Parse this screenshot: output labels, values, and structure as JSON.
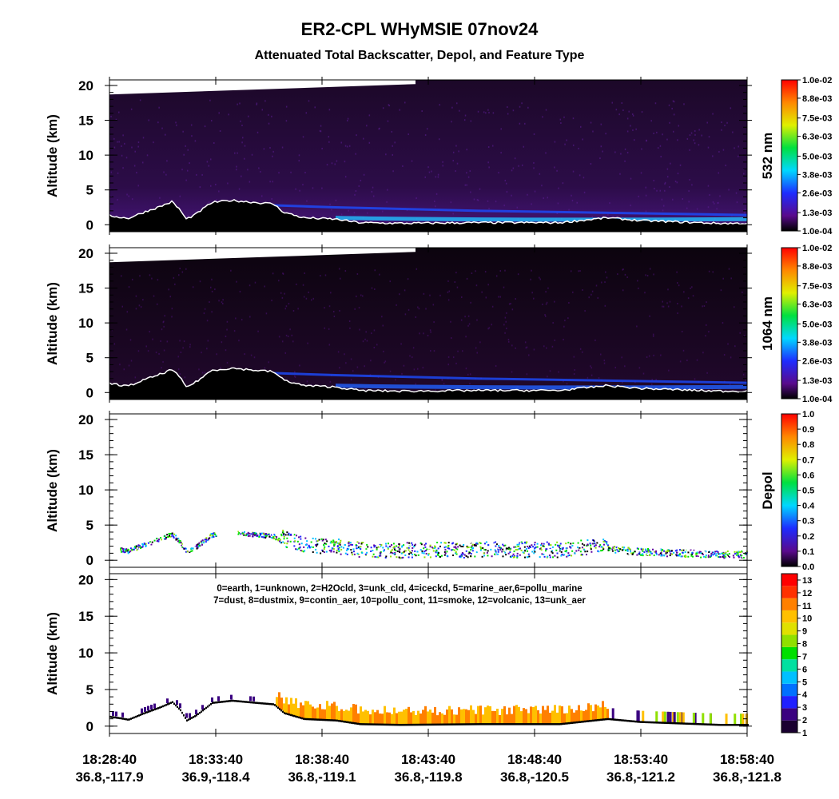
{
  "chart_data": {
    "type": "curtain",
    "title": "ER2-CPL WHyMSIE 07nov24",
    "subtitle": "Attenuated Total Backscatter, Depol, and Feature Type",
    "x_ticks": [
      {
        "time": "18:28:40",
        "location": "36.8,-117.9"
      },
      {
        "time": "18:33:40",
        "location": "36.9,-118.4"
      },
      {
        "time": "18:38:40",
        "location": "36.8,-119.1"
      },
      {
        "time": "18:43:40",
        "location": "36.8,-119.8"
      },
      {
        "time": "18:48:40",
        "location": "36.8,-120.5"
      },
      {
        "time": "18:53:40",
        "location": "36.8,-121.2"
      },
      {
        "time": "18:58:40",
        "location": "36.8,-121.8"
      }
    ],
    "panels": [
      {
        "ylabel": "Altitude (km)",
        "ylim": [
          -1,
          20.8
        ],
        "yticks": [
          0,
          5,
          10,
          15,
          20
        ],
        "colorbar": {
          "label": "532 nm",
          "lim": [
            0.0001,
            0.01
          ],
          "ticks": [
            {
              "value": 0.0001,
              "label": "1.0e-04"
            },
            {
              "value": 0.0013,
              "label": "1.3e-03"
            },
            {
              "value": 0.0026,
              "label": "2.6e-03"
            },
            {
              "value": 0.0038,
              "label": "3.8e-03"
            },
            {
              "value": 0.005,
              "label": "5.0e-03"
            },
            {
              "value": 0.0063,
              "label": "6.3e-03"
            },
            {
              "value": 0.0075,
              "label": "7.5e-03"
            },
            {
              "value": 0.0088,
              "label": "8.8e-03"
            },
            {
              "value": 0.01,
              "label": "1.0e-02"
            }
          ]
        }
      },
      {
        "ylabel": "Altitude (km)",
        "ylim": [
          -1,
          20.8
        ],
        "yticks": [
          0,
          5,
          10,
          15,
          20
        ],
        "colorbar": {
          "label": "1064 nm",
          "lim": [
            0.0001,
            0.01
          ],
          "ticks": [
            {
              "value": 0.0001,
              "label": "1.0e-04"
            },
            {
              "value": 0.0013,
              "label": "1.3e-03"
            },
            {
              "value": 0.0026,
              "label": "2.6e-03"
            },
            {
              "value": 0.0038,
              "label": "3.8e-03"
            },
            {
              "value": 0.005,
              "label": "5.0e-03"
            },
            {
              "value": 0.0063,
              "label": "6.3e-03"
            },
            {
              "value": 0.0075,
              "label": "7.5e-03"
            },
            {
              "value": 0.0088,
              "label": "8.8e-03"
            },
            {
              "value": 0.01,
              "label": "1.0e-02"
            }
          ]
        }
      },
      {
        "ylabel": "Altitude (km)",
        "ylim": [
          -1,
          20.8
        ],
        "yticks": [
          0,
          5,
          10,
          15,
          20
        ],
        "colorbar": {
          "label": "Depol",
          "lim": [
            0,
            1
          ],
          "ticks": [
            {
              "value": 0,
              "label": "0.0"
            },
            0.1,
            0.2,
            0.3,
            0.4,
            0.5,
            0.6,
            0.7,
            0.8,
            0.9,
            {
              "value": 1,
              "label": "1.0"
            }
          ]
        }
      },
      {
        "ylabel": "Altitude (km)",
        "ylim": [
          -1,
          20.8
        ],
        "yticks": [
          0,
          5,
          10,
          15,
          20
        ],
        "legend": [
          "0=earth, 1=unknown, 2=H2Ocld, 3=unk_cld, 4=iceckd, 5=marine_aer,6=pollu_marine",
          "7=dust, 8=dustmix, 9=contin_aer, 10=pollu_cont, 11=smoke, 12=volcanic, 13=unk_aer"
        ],
        "colorbar": {
          "label": null,
          "lim": [
            1,
            13.5
          ],
          "ticks": [
            1,
            2,
            3,
            4,
            5,
            6,
            7,
            8,
            9,
            10,
            11,
            12,
            13
          ]
        }
      }
    ]
  }
}
